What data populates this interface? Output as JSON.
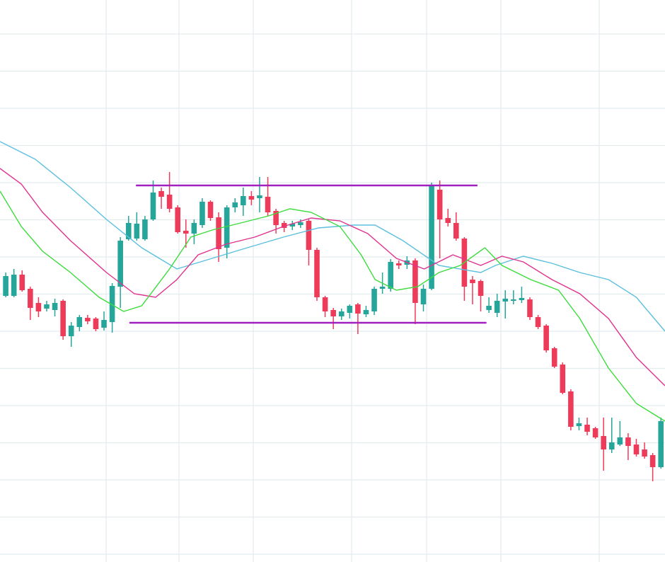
{
  "chart_data": {
    "type": "candlestick",
    "x": [
      1,
      2,
      3,
      4,
      5,
      6,
      7,
      8,
      9,
      10,
      11,
      12,
      13,
      14,
      15,
      16,
      17,
      18,
      19,
      20,
      21,
      22,
      23,
      24,
      25,
      26,
      27,
      28,
      29,
      30,
      31,
      32,
      33,
      34,
      35,
      36,
      37,
      38,
      39,
      40,
      41,
      42,
      43,
      44,
      45,
      46,
      47,
      48,
      49,
      50,
      51,
      52,
      53,
      54,
      55,
      56,
      57,
      58,
      59,
      60,
      61,
      62,
      63,
      64,
      65,
      66,
      67,
      68,
      69,
      70,
      71,
      72,
      73,
      74,
      75,
      76,
      77,
      78,
      79,
      80,
      81
    ],
    "open": [
      376,
      376,
      406,
      386,
      366,
      358,
      356,
      369,
      319,
      332,
      345,
      344,
      331,
      339,
      389,
      456,
      457,
      456,
      484,
      524,
      519,
      501,
      468,
      464,
      476,
      509,
      487,
      444,
      501,
      504,
      517,
      514,
      516,
      496,
      479,
      474,
      476,
      482,
      441,
      374,
      356,
      347,
      352,
      364,
      350,
      354,
      386,
      386,
      422,
      420,
      426,
      364,
      386,
      526,
      486,
      479,
      457,
      399,
      397,
      356,
      352,
      368,
      369,
      370,
      371,
      346,
      334,
      302,
      279,
      241,
      192,
      194,
      189,
      178,
      159,
      166,
      176,
      166,
      159,
      151,
      134
    ],
    "high": [
      409,
      414,
      412,
      389,
      374,
      369,
      372,
      371,
      339,
      349,
      349,
      346,
      354,
      394,
      459,
      489,
      494,
      489,
      539,
      529,
      551,
      504,
      484,
      484,
      514,
      511,
      494,
      504,
      514,
      529,
      524,
      544,
      544,
      499,
      482,
      482,
      484,
      484,
      444,
      376,
      359,
      358,
      364,
      366,
      362,
      389,
      409,
      428,
      426,
      432,
      429,
      392,
      536,
      539,
      499,
      494,
      459,
      404,
      399,
      374,
      379,
      384,
      384,
      389,
      374,
      349,
      336,
      304,
      282,
      244,
      204,
      204,
      191,
      204,
      204,
      199,
      182,
      174,
      169,
      154,
      204
    ],
    "low": [
      374,
      374,
      382,
      342,
      346,
      354,
      347,
      314,
      304,
      326,
      336,
      326,
      327,
      324,
      359,
      454,
      454,
      454,
      482,
      499,
      494,
      464,
      444,
      449,
      472,
      482,
      424,
      429,
      494,
      489,
      504,
      494,
      489,
      464,
      466,
      469,
      472,
      419,
      369,
      346,
      329,
      342,
      344,
      322,
      346,
      349,
      379,
      382,
      414,
      414,
      336,
      354,
      384,
      429,
      474,
      454,
      369,
      364,
      354,
      352,
      346,
      344,
      364,
      366,
      342,
      329,
      296,
      274,
      237,
      186,
      186,
      179,
      174,
      129,
      154,
      164,
      144,
      149,
      146,
      114,
      132
    ],
    "close": [
      404,
      406,
      384,
      359,
      354,
      364,
      366,
      319,
      334,
      346,
      340,
      329,
      342,
      390,
      454,
      479,
      478,
      484,
      522,
      516,
      499,
      466,
      464,
      479,
      509,
      486,
      442,
      501,
      508,
      517,
      512,
      518,
      494,
      476,
      472,
      478,
      480,
      441,
      374,
      354,
      347,
      354,
      362,
      351,
      356,
      386,
      389,
      424,
      419,
      426,
      366,
      386,
      532,
      484,
      479,
      457,
      389,
      394,
      376,
      362,
      369,
      372,
      371,
      373,
      346,
      332,
      299,
      276,
      239,
      191,
      196,
      184,
      176,
      159,
      169,
      176,
      164,
      152,
      149,
      134,
      199
    ],
    "up_color": "#26a69a",
    "down_color": "#ef3b5a",
    "xlim": [
      0.3,
      81.5
    ],
    "ylim": [
      0,
      794
    ],
    "lines": [
      {
        "color": "#5bc0de",
        "x": [
          0.3,
          4.6,
          8.9,
          13.3,
          17.6,
          21.9,
          26.2,
          30.5,
          34.9,
          39.2,
          43.5,
          46.1,
          49.5,
          53.9,
          59.0,
          60.8,
          64.2,
          67.7,
          71.1,
          74.6,
          78.0,
          81.5
        ],
        "values": [
          594,
          569,
          529,
          484,
          444,
          414,
          429,
          444,
          459,
          472,
          476,
          476,
          454,
          419,
          409,
          419,
          432,
          422,
          409,
          399,
          374,
          326
        ]
      },
      {
        "color": "#e0338f",
        "x": [
          0.3,
          2.9,
          5.5,
          8.9,
          13.3,
          16.7,
          19.3,
          21.9,
          24.5,
          27.9,
          31.4,
          34.9,
          38.3,
          41.8,
          45.2,
          48.7,
          52.1,
          55.6,
          59.0,
          61.6,
          64.2,
          67.7,
          71.1,
          74.6,
          78.0,
          81.5
        ],
        "values": [
          556,
          534,
          494,
          454,
          409,
          379,
          374,
          399,
          434,
          449,
          459,
          474,
          486,
          482,
          464,
          429,
          414,
          434,
          419,
          432,
          424,
          399,
          379,
          344,
          289,
          249
        ]
      },
      {
        "color": "#3ddc3d",
        "x": [
          0.3,
          2.9,
          5.5,
          8.9,
          12.4,
          15.4,
          17.6,
          21.0,
          23.6,
          26.2,
          29.7,
          33.1,
          35.7,
          38.3,
          41.8,
          44.4,
          46.1,
          48.7,
          51.3,
          53.9,
          56.5,
          59.5,
          61.6,
          65.1,
          68.5,
          71.1,
          74.6,
          78.0,
          81.5
        ],
        "values": [
          524,
          474,
          439,
          409,
          374,
          354,
          362,
          414,
          459,
          469,
          479,
          489,
          499,
          494,
          474,
          434,
          399,
          384,
          389,
          409,
          419,
          444,
          419,
          399,
          384,
          344,
          274,
          224,
          199
        ]
      }
    ],
    "levels": [
      {
        "value": 532,
        "x": [
          16.9,
          58.6
        ]
      },
      {
        "value": 338,
        "x": [
          16.1,
          59.7
        ]
      }
    ],
    "level_color": "#a020c0"
  }
}
